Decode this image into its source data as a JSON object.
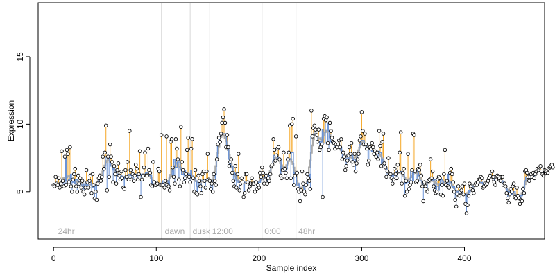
{
  "chart_data": {
    "type": "scatter",
    "xlabel": "Sample index",
    "ylabel": "Expression",
    "xlim": [
      -15,
      478
    ],
    "ylim": [
      1.5,
      19
    ],
    "x_ticks": [
      0,
      100,
      200,
      300,
      400
    ],
    "y_ticks": [
      5,
      10,
      15
    ],
    "grid": false,
    "region_boundaries": [
      105,
      133,
      152,
      203,
      236
    ],
    "region_labels": [
      {
        "x": 3,
        "text": "24hr"
      },
      {
        "x": 107,
        "text": "dawn"
      },
      {
        "x": 134,
        "text": "dusk"
      },
      {
        "x": 153,
        "text": "12:00"
      },
      {
        "x": 204,
        "text": "0:00"
      },
      {
        "x": 237,
        "text": "48hr"
      }
    ],
    "colors": {
      "fitted": "#6a93d6",
      "smooth": "#aaaaaa",
      "residual_up": "#f5a623",
      "residual_down": "#6a93d6",
      "point_fill": "#ffffff",
      "point_stroke": "#000000",
      "boundary": "#d8d8d8"
    },
    "series": [
      {
        "y": [
          5.5,
          5.4,
          6.1,
          5.6,
          5.5,
          6.0,
          5.3,
          5.6,
          8.0,
          5.8,
          5.4,
          7.6,
          5.5,
          8.1,
          7.8,
          5.7,
          8.3,
          5.4,
          5.0,
          5.9,
          6.3,
          6.7,
          5.4,
          5.0,
          6.2,
          5.6,
          6.0,
          5.3,
          5.8,
          5.0,
          4.8,
          5.3,
          6.6,
          5.7,
          5.3,
          5.8,
          6.2,
          4.9,
          6.3,
          5.5,
          4.5,
          5.0,
          4.4,
          5.6,
          6.0,
          6.2,
          5.8,
          6.1,
          7.6,
          6.7,
          7.9,
          9.9,
          5.1,
          7.6,
          6.1,
          8.5,
          7.6,
          7.2,
          5.7,
          6.9,
          6.3,
          5.6,
          6.6,
          7.1,
          6.2,
          5.9,
          6.5,
          6.0,
          5.3,
          5.2,
          6.6,
          6.1,
          7.2,
          5.9,
          9.5,
          6.6,
          5.9,
          6.3,
          5.8,
          6.2,
          7.0,
          6.7,
          5.9,
          6.3,
          8.0,
          4.6,
          5.9,
          6.2,
          6.8,
          7.9,
          6.2,
          6.2,
          8.2,
          6.6,
          6.4,
          5.5,
          5.4,
          7.2,
          5.7,
          5.5,
          5.5,
          5.6,
          6.7,
          6.5,
          5.5,
          9.2,
          5.5,
          5.5,
          5.3,
          5.8,
          9.1,
          5.5,
          5.4,
          5.1,
          8.7,
          8.9,
          6.8,
          6.1,
          5.6,
          8.9,
          8.2,
          7.4,
          5.9,
          5.4,
          9.8,
          7.2,
          6.6,
          5.7,
          6.0,
          6.3,
          8.1,
          9.0,
          6.1,
          5.7,
          8.2,
          8.9,
          6.0,
          5.0,
          6.6,
          4.9,
          4.8,
          6.2,
          5.8,
          5.4,
          4.9,
          6.3,
          6.5,
          5.8,
          5.3,
          6.5,
          7.8,
          5.9,
          5.8,
          5.2,
          5.6,
          5.0,
          6.3,
          5.8,
          5.5,
          7.4,
          8.5,
          9.0,
          8.7,
          9.3,
          10.1,
          10.5,
          11.1,
          10.1,
          8.3,
          9.2,
          8.3,
          6.9,
          7.2,
          7.4,
          6.4,
          5.8,
          5.4,
          6.9,
          5.3,
          6.3,
          7.8,
          5.1,
          5.6,
          6.0,
          5.7,
          4.6,
          4.9,
          6.3,
          6.3,
          5.7,
          5.1,
          5.4,
          5.6,
          6.0,
          5.6,
          5.6,
          5.0,
          5.7,
          5.2,
          5.5,
          5.3,
          6.4,
          6.1,
          6.8,
          6.4,
          5.6,
          5.9,
          6.2,
          5.6,
          6.0,
          5.8,
          6.3,
          6.9,
          7.0,
          8.9,
          8.1,
          7.3,
          7.7,
          8.2,
          8.3,
          7.4,
          6.2,
          6.0,
          6.6,
          7.9,
          6.7,
          6.4,
          6.0,
          7.4,
          7.9,
          9.9,
          6.0,
          10.0,
          10.4,
          5.5,
          6.2,
          9.1,
          6.4,
          5.2,
          5.0,
          4.3,
          5.1,
          6.5,
          5.6,
          5.0,
          4.8,
          5.5,
          6.3,
          6.0,
          5.8,
          5.2,
          11.0,
          9.1,
          9.7,
          9.9,
          9.6,
          9.2,
          8.7,
          9.6,
          8.1,
          8.3,
          8.5,
          4.6,
          10.4,
          10.6,
          10.3,
          10.5,
          8.6,
          8.1,
          10.1,
          9.5,
          9.0,
          8.7,
          8.6,
          8.2,
          8.5,
          8.3,
          8.5,
          8.8,
          8.3,
          8.9,
          7.4,
          7.9,
          7.6,
          6.6,
          6.9,
          7.3,
          7.7,
          8.3,
          7.8,
          8.6,
          7.2,
          7.0,
          7.8,
          6.5,
          7.1,
          7.4,
          7.8,
          8.8,
          9.1,
          10.9,
          9.5,
          8.5,
          9.3,
          8.5,
          8.2,
          7.0,
          7.3,
          8.3,
          8.2,
          8.6,
          8.3,
          7.8,
          8.0,
          7.6,
          7.9,
          7.4,
          9.5,
          8.4,
          6.9,
          8.7,
          9.3,
          7.1,
          6.8,
          6.1,
          6.5,
          7.5,
          6.2,
          6.3,
          6.0,
          5.6,
          5.9,
          6.7,
          6.3,
          6.0,
          7.0,
          6.5,
          7.9,
          9.4,
          5.6,
          6.4,
          6.7,
          4.7,
          5.8,
          5.0,
          7.8,
          5.2,
          5.5,
          5.7,
          6.6,
          9.3,
          9.2,
          6.5,
          5.7,
          5.8,
          6.7,
          6.6,
          7.0,
          6.2,
          5.4,
          4.3,
          5.7,
          5.4,
          5.2,
          5.0,
          5.8,
          5.9,
          7.4,
          6.0,
          6.5,
          5.4,
          5.1,
          4.9,
          5.0,
          5.9,
          6.1,
          6.0,
          4.8,
          5.5,
          4.7,
          6.3,
          8.1,
          5.5,
          5.8,
          5.4,
          5.3,
          6.4,
          6.7,
          6.3,
          5.7,
          5.0,
          4.4,
          3.9,
          4.8,
          5.4,
          4.7,
          5.0,
          5.1,
          5.4,
          4.8,
          5.6,
          4.1,
          3.4,
          4.0,
          4.7,
          5.6,
          5.4,
          5.2,
          5.1,
          4.9,
          5.5,
          5.6,
          5.5,
          5.7,
          5.9,
          5.9,
          6.1,
          6.0,
          5.3,
          5.4,
          5.6,
          5.5,
          5.6,
          5.8,
          6.0,
          6.2,
          5.9,
          6.5,
          6.1,
          5.7,
          5.5,
          5.9,
          6.2,
          6.1,
          6.0,
          5.8,
          6.1,
          6.1,
          5.5,
          5.6,
          5.4,
          4.9,
          4.5,
          4.2,
          4.8,
          5.2,
          5.0,
          5.4,
          5.6,
          4.6,
          4.5,
          5.3,
          4.7,
          4.5,
          4.1,
          4.4,
          4.3,
          5.2,
          4.9,
          6.5,
          6.6,
          6.4,
          6.1,
          5.8,
          6.1,
          6.3,
          6.1,
          6.4,
          6.0,
          6.3,
          6.5,
          6.7,
          6.6,
          6.8,
          6.9,
          6.5,
          6.3,
          6.2,
          6.6,
          6.4,
          6.5,
          6.4,
          6.7,
          6.8,
          6.9,
          7.0,
          6.8
        ]
      }
    ]
  }
}
